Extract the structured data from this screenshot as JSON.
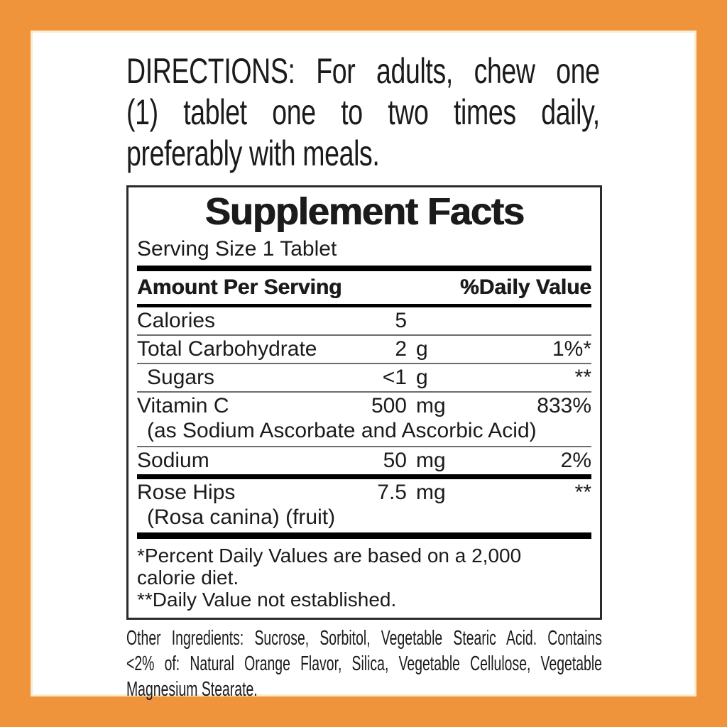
{
  "colors": {
    "border_orange": "#F0943C",
    "inner_edge_cream": "#F9ECCC",
    "panel_white": "#FFFFFF",
    "text_black": "#1B1B1B"
  },
  "directions": {
    "lines": [
      "DIRECTIONS: For adults, chew one",
      "(1) tablet one to two times daily,",
      "preferably with meals."
    ]
  },
  "supplement_facts": {
    "title": "Supplement Facts",
    "serving_size": "Serving Size 1 Tablet",
    "columns": {
      "amount_header": "Amount Per Serving",
      "daily_value_header": "%Daily Value"
    },
    "rows": [
      {
        "label": "Calories",
        "amount": "5",
        "unit": "",
        "dv": "",
        "indent": false,
        "sub": "",
        "sep": "hair"
      },
      {
        "label": "Total Carbohydrate",
        "amount": "2",
        "unit": "g",
        "dv": "1%*",
        "indent": false,
        "sub": "",
        "sep": "hair"
      },
      {
        "label": "Sugars",
        "amount": "<1",
        "unit": "g",
        "dv": "**",
        "indent": true,
        "sub": "",
        "sep": "hair"
      },
      {
        "label": "Vitamin C",
        "amount": "500",
        "unit": "mg",
        "dv": "833%",
        "indent": false,
        "sub": "(as Sodium Ascorbate and Ascorbic Acid)",
        "sep": "hair"
      },
      {
        "label": "Sodium",
        "amount": "50",
        "unit": "mg",
        "dv": "2%",
        "indent": false,
        "sub": "",
        "sep": "thick"
      },
      {
        "label": "Rose Hips",
        "amount": "7.5",
        "unit": "mg",
        "dv": "**",
        "indent": false,
        "sub": "(Rosa canina) (fruit)",
        "sep": "none"
      }
    ],
    "footnotes": [
      "*Percent Daily Values are based on a 2,000",
      "calorie diet.",
      "**Daily Value not established."
    ]
  },
  "other_ingredients": {
    "lines": [
      "Other Ingredients: Sucrose, Sorbitol, Vegetable Stearic Acid. Contains",
      "<2% of: Natural Orange Flavor, Silica, Vegetable Cellulose, Vegetable",
      "Magnesium Stearate."
    ]
  }
}
